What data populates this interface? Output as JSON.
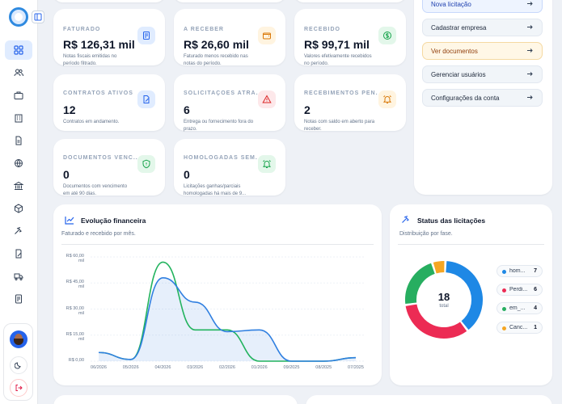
{
  "kpis": [
    {
      "label": "FATURADO",
      "value": "R$ 126,31 mil",
      "desc": "Notas fiscais emitidas no período filtrado.",
      "icon": "receipt-icon",
      "color": "#2563eb",
      "bg": "#e0ecff"
    },
    {
      "label": "A RECEBER",
      "value": "R$ 26,60 mil",
      "desc": "Faturado menos recebido nas notas do período.",
      "icon": "wallet-icon",
      "color": "#d97706",
      "bg": "#fff4e0"
    },
    {
      "label": "RECEBIDO",
      "value": "R$ 99,71 mil",
      "desc": "Valores efetivamente recebidos no período.",
      "icon": "dollar-circle-icon",
      "color": "#16a34a",
      "bg": "#e3f7ea"
    },
    {
      "label": "CONTRATOS ATIVOS",
      "value": "12",
      "desc": "Contratos em andamento.",
      "icon": "edit-document-icon",
      "color": "#2563eb",
      "bg": "#e0ecff"
    },
    {
      "label": "SOLICITAÇÕES ATRA...",
      "value": "6",
      "desc": "Entrega ou fornecimento fora do prazo.",
      "icon": "warning-icon",
      "color": "#dc2626",
      "bg": "#fde8ea"
    },
    {
      "label": "RECEBIMENTOS PEN...",
      "value": "2",
      "desc": "Notas com saldo em aberto para receber.",
      "icon": "alarm-icon",
      "color": "#d97706",
      "bg": "#fff4e0"
    },
    {
      "label": "DOCUMENTOS VENC...",
      "value": "0",
      "desc": "Documentos com vencimento em até 90 dias.",
      "icon": "shield-icon",
      "color": "#16a34a",
      "bg": "#e3f7ea"
    },
    {
      "label": "HOMOLOGADAS SEM...",
      "value": "0",
      "desc": "Licitações ganhas/parciais homologadas há mais de 9...",
      "icon": "alarm-icon",
      "color": "#16a34a",
      "bg": "#e3f7ea"
    }
  ],
  "quick_actions": [
    {
      "label": "Nova licitação",
      "style": "primary"
    },
    {
      "label": "Cadastrar empresa",
      "style": "default"
    },
    {
      "label": "Ver documentos",
      "style": "warn"
    },
    {
      "label": "Gerenciar usuários",
      "style": "default"
    },
    {
      "label": "Configurações da conta",
      "style": "default"
    }
  ],
  "finance": {
    "title": "Evolução financeira",
    "subtitle": "Faturado e recebido por mês."
  },
  "status": {
    "title": "Status das licitações",
    "subtitle": "Distribuição por fase.",
    "total": "18",
    "total_label": "total",
    "items": [
      {
        "name": "hom...",
        "count": "7",
        "color": "#1e88e5"
      },
      {
        "name": "Perdi...",
        "count": "6",
        "color": "#ec2b54"
      },
      {
        "name": "em_...",
        "count": "4",
        "color": "#27ae60"
      },
      {
        "name": "Canc...",
        "count": "1",
        "color": "#f5a623"
      }
    ]
  },
  "chart_data": [
    {
      "type": "line",
      "title": "Evolução financeira",
      "x": [
        "06/2026",
        "05/2026",
        "04/2026",
        "03/2026",
        "02/2026",
        "01/2026",
        "09/2025",
        "08/2025",
        "07/2025"
      ],
      "yticks": [
        "R$ 60,00 mil",
        "R$ 45,00 mil",
        "R$ 30,00 mil",
        "R$ 15,00 mil",
        "R$ 0,00"
      ],
      "ylim": [
        0,
        60
      ],
      "series": [
        {
          "values": [
            5,
            1,
            57,
            18,
            18,
            0,
            0,
            0,
            2
          ],
          "color": "#22b35e"
        },
        {
          "values": [
            5,
            1,
            48,
            34,
            17,
            18,
            0,
            0,
            2
          ],
          "color": "#2f7fe0"
        }
      ]
    },
    {
      "type": "pie",
      "categories": [
        "hom...",
        "Perdi...",
        "em_...",
        "Canc..."
      ],
      "values": [
        7,
        6,
        4,
        1
      ],
      "colors": [
        "#1e88e5",
        "#ec2b54",
        "#27ae60",
        "#f5a623"
      ]
    }
  ]
}
